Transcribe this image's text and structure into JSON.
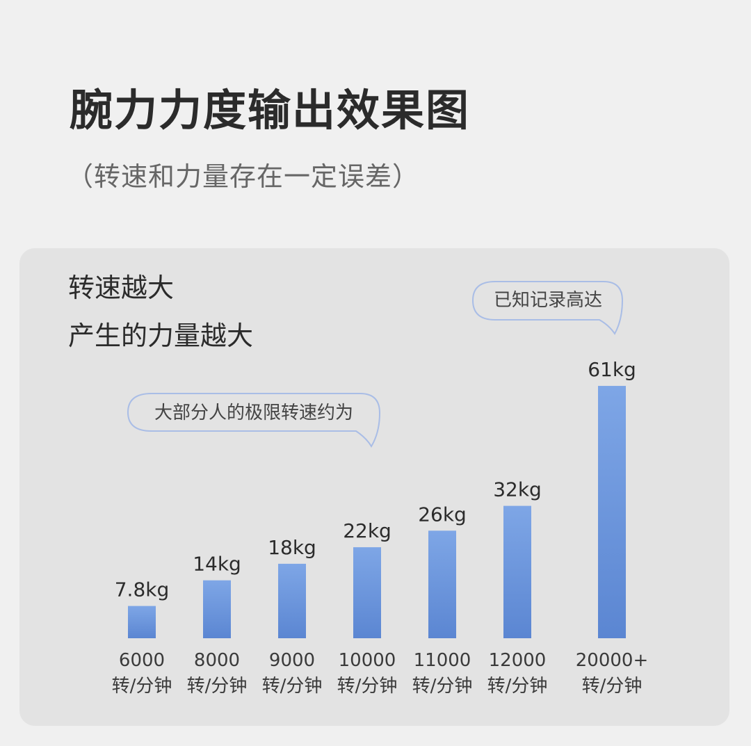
{
  "header": {
    "title": "腕力力度输出效果图",
    "subtitle": "（转速和力量存在一定误差）"
  },
  "panel": {
    "headline_line1": "转速越大",
    "headline_line2": "产生的力量越大"
  },
  "callouts": {
    "typical_limit": "大部分人的极限转速约为",
    "record": "已知记录高达"
  },
  "colors": {
    "background": "#f0f0f0",
    "panel": "#e3e3e3",
    "bar_top": "#7ea6e6",
    "bar_bottom": "#5b86d2",
    "callout_border": "#a9bde6"
  },
  "chart_data": {
    "type": "bar",
    "categories": [
      "6000",
      "8000",
      "9000",
      "10000",
      "11000",
      "12000",
      "20000+"
    ],
    "category_unit": "转/分钟",
    "values": [
      7.8,
      14,
      18,
      22,
      26,
      32,
      61
    ],
    "value_labels": [
      "7.8kg",
      "14kg",
      "18kg",
      "22kg",
      "26kg",
      "32kg",
      "61kg"
    ],
    "unit": "kg",
    "grid": false,
    "axis_lines": false
  }
}
